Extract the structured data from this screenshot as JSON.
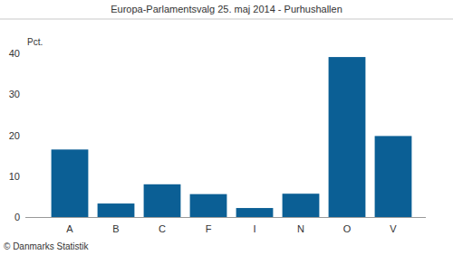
{
  "chart_data": {
    "type": "bar",
    "title": "Europa-Parlamentsvalg 25. maj 2014 - Purhushallen",
    "y_label": "Pct.",
    "source": "© Danmarks Statistik",
    "categories": [
      "A",
      "B",
      "C",
      "F",
      "I",
      "N",
      "O",
      "V"
    ],
    "values": [
      16.5,
      3.3,
      8.0,
      5.6,
      2.2,
      5.7,
      39.1,
      19.8
    ],
    "color": "#0b5f95",
    "ylim": [
      0,
      40
    ],
    "yticks": [
      0,
      10,
      20,
      30,
      40
    ],
    "grid": false
  }
}
